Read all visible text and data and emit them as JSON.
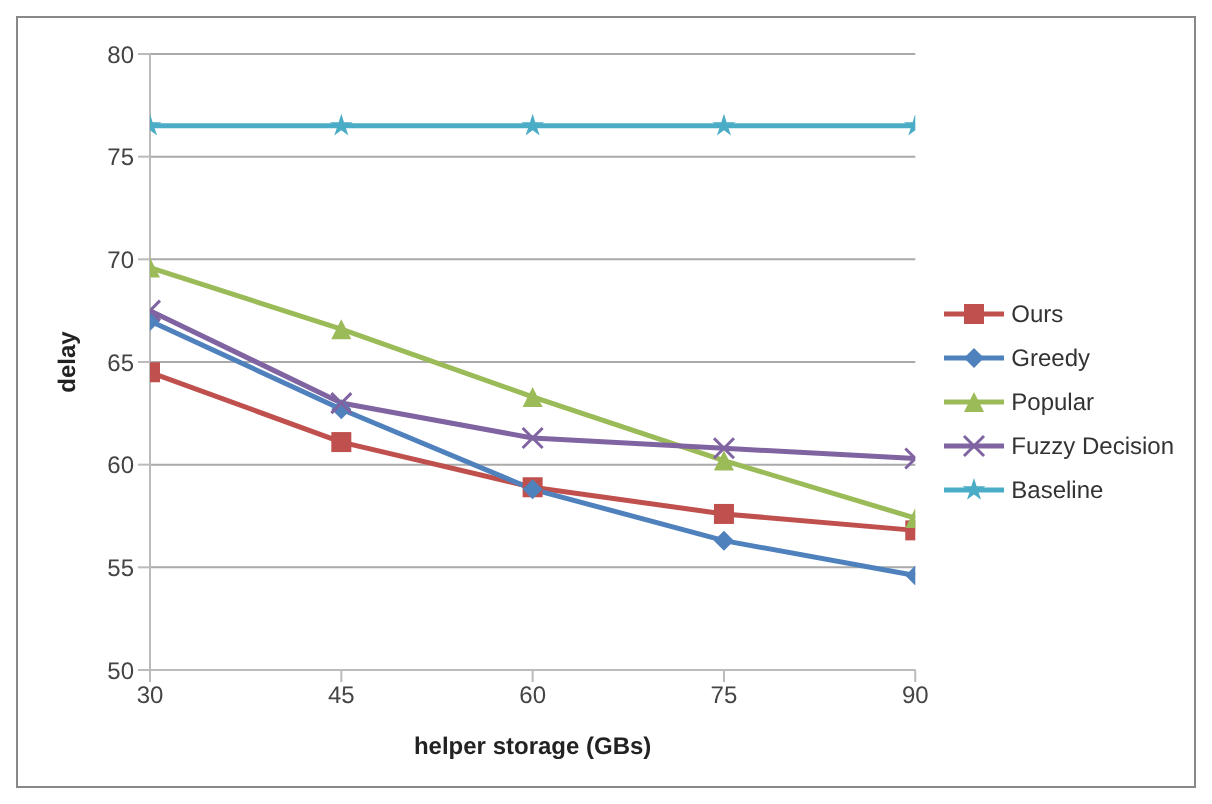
{
  "chart_data": {
    "type": "line",
    "xlabel": "helper storage (GBs)",
    "ylabel": "delay",
    "x": [
      30,
      45,
      60,
      75,
      90
    ],
    "series": [
      {
        "name": "Ours",
        "color": "#c0504d",
        "marker": "square",
        "values": [
          64.5,
          61.1,
          58.9,
          57.6,
          56.8
        ]
      },
      {
        "name": "Greedy",
        "color": "#4f81bd",
        "marker": "diamond",
        "values": [
          67,
          62.7,
          58.8,
          56.3,
          54.6
        ]
      },
      {
        "name": "Popular",
        "color": "#9bbb59",
        "marker": "triangle",
        "values": [
          69.6,
          66.6,
          63.3,
          60.2,
          57.4
        ]
      },
      {
        "name": "Fuzzy Decision",
        "color": "#8064a2",
        "marker": "cross",
        "values": [
          67.5,
          63,
          61.3,
          60.8,
          60.3
        ]
      },
      {
        "name": "Baseline",
        "color": "#4bacc6",
        "marker": "star",
        "values": [
          76.5,
          76.5,
          76.5,
          76.5,
          76.5
        ]
      }
    ],
    "xlim": [
      30,
      90
    ],
    "xticks": [
      30,
      45,
      60,
      75,
      90
    ],
    "ylim": [
      50,
      80
    ],
    "yticks": [
      50,
      55,
      60,
      65,
      70,
      75,
      80
    ],
    "grid": "y",
    "legend": "right",
    "line_style": "solid"
  }
}
